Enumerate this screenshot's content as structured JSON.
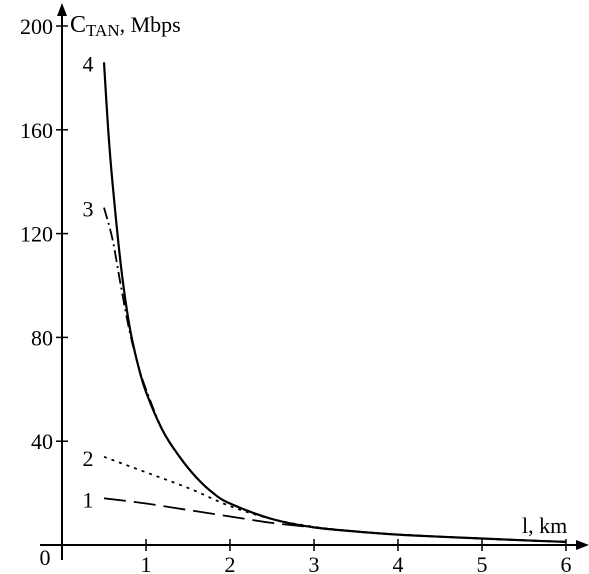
{
  "chart_data": {
    "type": "line",
    "ylabel_main": "C",
    "ylabel_sub": "TAN",
    "ylabel_unit": ", Mbps",
    "xlabel": "l, km",
    "origin_label": "0",
    "xlim": [
      0,
      6.2
    ],
    "ylim": [
      0,
      200
    ],
    "xticks": [
      1,
      2,
      3,
      4,
      5,
      6
    ],
    "yticks": [
      40,
      80,
      120,
      160,
      200
    ],
    "grid": false,
    "legend": "none",
    "series": [
      {
        "label": "1",
        "style": "long-dash",
        "x": [
          0.5,
          1.0,
          1.5,
          2.0,
          2.5,
          3.0,
          3.5,
          4.0,
          4.5,
          5.0,
          5.5,
          6.0
        ],
        "y": [
          18,
          16,
          13.5,
          11,
          8.5,
          6.8,
          5.2,
          4.0,
          3.2,
          2.5,
          1.8,
          1.2
        ]
      },
      {
        "label": "2",
        "style": "dotted",
        "x": [
          0.5,
          1.0,
          1.5,
          2.0,
          2.5,
          3.0,
          3.5,
          4.0,
          4.5,
          5.0,
          5.5,
          6.0
        ],
        "y": [
          34,
          28,
          22,
          15,
          10,
          7,
          5.2,
          4.0,
          3.2,
          2.5,
          1.8,
          1.2
        ]
      },
      {
        "label": "3",
        "style": "dash-dot",
        "x": [
          0.5,
          0.6,
          0.7,
          0.8,
          0.9,
          1.0,
          1.2,
          1.4,
          1.6,
          1.8,
          2.0,
          2.5,
          3.0,
          3.5,
          4.0,
          4.5,
          5.0,
          5.5,
          6.0
        ],
        "y": [
          130,
          118,
          100,
          83,
          70,
          60,
          44,
          34,
          26,
          20,
          16,
          10,
          6.8,
          5.2,
          4.0,
          3.2,
          2.5,
          1.8,
          1.2
        ]
      },
      {
        "label": "4",
        "style": "solid",
        "x": [
          0.5,
          0.55,
          0.6,
          0.7,
          0.8,
          0.9,
          1.0,
          1.2,
          1.4,
          1.6,
          1.8,
          2.0,
          2.5,
          3.0,
          3.5,
          4.0,
          4.5,
          5.0,
          5.5,
          6.0
        ],
        "y": [
          186,
          160,
          140,
          108,
          85,
          70,
          59,
          44,
          34,
          26,
          20,
          16,
          10,
          6.8,
          5.2,
          4.0,
          3.2,
          2.5,
          1.8,
          1.2
        ]
      }
    ]
  }
}
